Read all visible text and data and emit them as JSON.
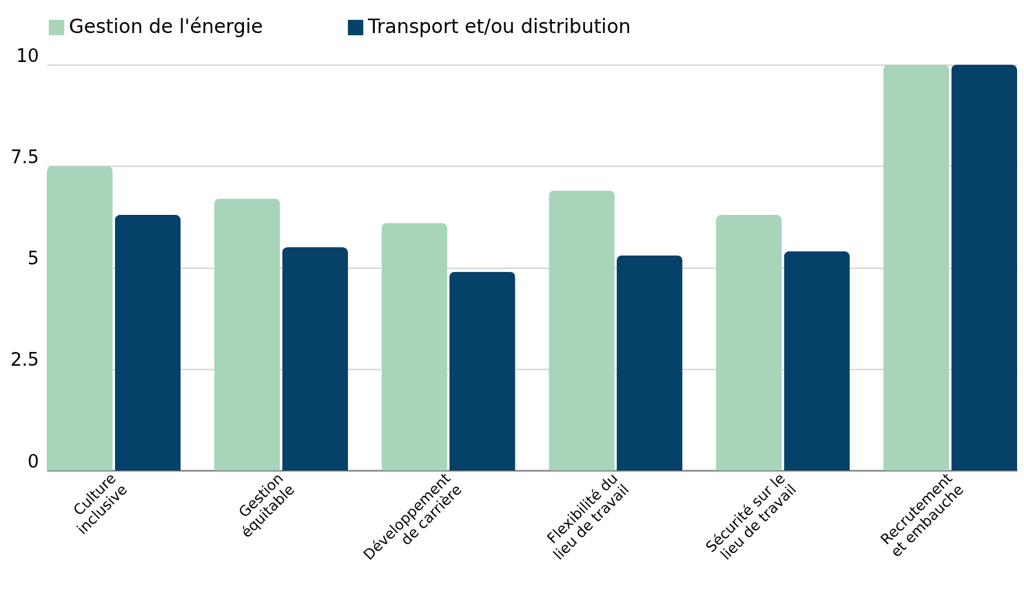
{
  "chart_data": {
    "type": "bar",
    "categories": [
      "Culture inclusive",
      "Gestion équitable",
      "Développement de carrière",
      "Flexibilité du lieu de travail",
      "Sécurité sur le lieu de travail",
      "Recrutement et embauche"
    ],
    "series": [
      {
        "name": "Gestion de l'énergie",
        "color": "#a8d5ba",
        "values": [
          7.5,
          6.7,
          6.1,
          6.9,
          6.3,
          10
        ]
      },
      {
        "name": "Transport et/ou distribution",
        "color": "#054168",
        "values": [
          6.3,
          5.5,
          4.9,
          5.3,
          5.4,
          10
        ]
      }
    ],
    "ylim": [
      0,
      10
    ],
    "yticks": [
      0,
      2.5,
      5,
      7.5,
      10
    ],
    "grid": "y",
    "legend": "top"
  }
}
